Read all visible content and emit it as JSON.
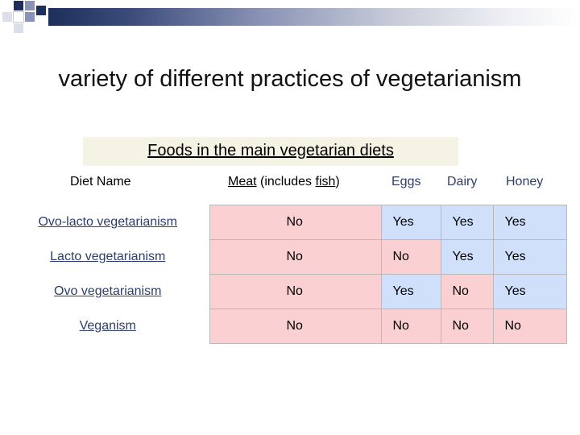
{
  "slide": {
    "title": "variety of different practices of vegetarianism",
    "table_caption": "Foods in the main vegetarian diets"
  },
  "table": {
    "headers": {
      "diet_name": "Diet Name",
      "meat": "Meat",
      "meat_suffix_open": " (includes ",
      "fish": "fish",
      "meat_suffix_close": ")",
      "eggs": "Eggs",
      "dairy": "Dairy",
      "honey": "Honey"
    },
    "rows": [
      {
        "name": "Ovo-lacto vegetarianism",
        "meat": "No",
        "eggs": "Yes",
        "dairy": "Yes",
        "honey": "Yes"
      },
      {
        "name": "Lacto vegetarianism",
        "meat": "No",
        "eggs": "No",
        "dairy": "Yes",
        "honey": "Yes"
      },
      {
        "name": "Ovo vegetarianism",
        "meat": "No",
        "eggs": "Yes",
        "dairy": "No",
        "honey": "Yes"
      },
      {
        "name": "Veganism",
        "meat": "No",
        "eggs": "No",
        "dairy": "No",
        "honey": "No"
      }
    ]
  },
  "colors": {
    "no_cell": "#fbd0d3",
    "yes_cell": "#d1e0fa",
    "link_text": "#2d3e6d",
    "caption_bg": "#f4f3e4"
  }
}
